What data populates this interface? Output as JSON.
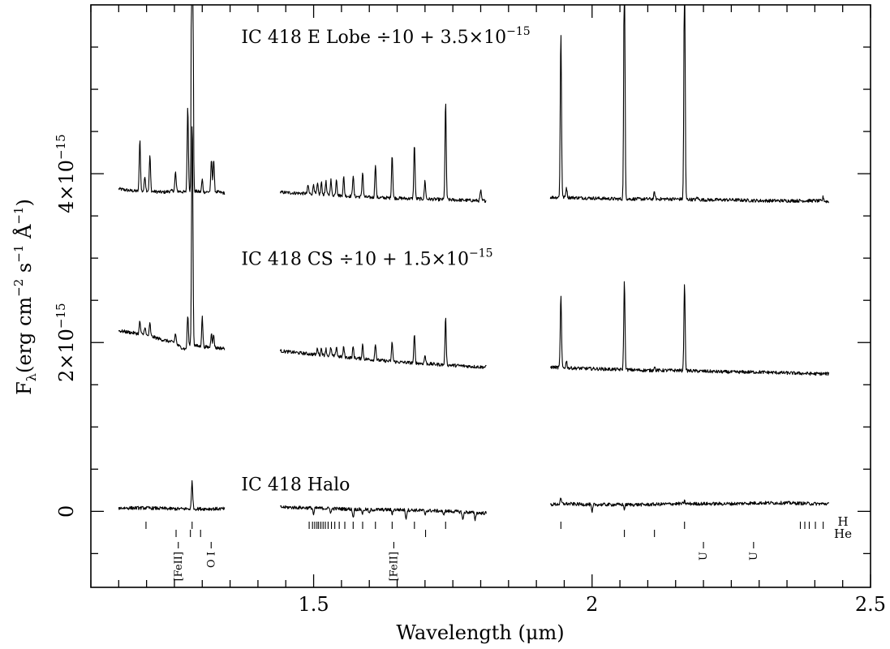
{
  "chart_data": {
    "type": "line",
    "xlabel": "Wavelength (μm)",
    "ylabel_parts": {
      "base": "F",
      "sub": "λ",
      "rest": "(erg cm",
      "exp1": "−2",
      "mid": " s",
      "exp2": "−1",
      "end1": " Å",
      "exp3": "−1",
      "end2": ")"
    },
    "xlim": [
      1.1,
      2.5
    ],
    "ylim": [
      -0.9,
      6.0
    ],
    "x_ticks": [
      {
        "value": 1.5,
        "label": "1.5"
      },
      {
        "value": 2.0,
        "label": "2"
      },
      {
        "value": 2.5,
        "label": "2.5"
      }
    ],
    "y_ticks": [
      {
        "value": 0,
        "mant": "0",
        "exp": ""
      },
      {
        "value": 2,
        "mant": "2×10",
        "exp": "−15"
      },
      {
        "value": 4,
        "mant": "4×10",
        "exp": "−15"
      }
    ],
    "series": [
      {
        "label_main": "IC 418 E Lobe ÷10 + 3.5×10",
        "label_exp": "−15",
        "label_x": 1.37,
        "label_y": 5.55,
        "segments": [
          {
            "x": [
              1.15,
              1.17,
              1.19,
              1.2,
              1.21,
              1.23,
              1.25,
              1.27,
              1.28,
              1.29,
              1.3,
              1.32,
              1.34
            ],
            "y": [
              3.82,
              3.8,
              3.79,
              3.8,
              3.79,
              3.78,
              3.8,
              3.78,
              3.8,
              3.79,
              3.78,
              3.79,
              3.77
            ],
            "peaks": [
              [
                1.188,
                0.62
              ],
              [
                1.197,
                0.18
              ],
              [
                1.206,
                0.42
              ],
              [
                1.252,
                0.22
              ],
              [
                1.274,
                1.0
              ],
              [
                1.2818,
                5.2
              ],
              [
                1.2825,
                3.0
              ],
              [
                1.3,
                0.15
              ],
              [
                1.3165,
                0.38
              ],
              [
                1.3205,
                0.38
              ]
            ]
          },
          {
            "x": [
              1.44,
              1.5,
              1.55,
              1.6,
              1.65,
              1.7,
              1.75,
              1.8,
              1.81
            ],
            "y": [
              3.78,
              3.76,
              3.74,
              3.72,
              3.71,
              3.7,
              3.69,
              3.68,
              3.68
            ],
            "peaks": [
              [
                1.49,
                0.1
              ],
              [
                1.5,
                0.12
              ],
              [
                1.507,
                0.12
              ],
              [
                1.514,
                0.14
              ],
              [
                1.522,
                0.16
              ],
              [
                1.531,
                0.18
              ],
              [
                1.541,
                0.2
              ],
              [
                1.554,
                0.22
              ],
              [
                1.571,
                0.25
              ],
              [
                1.588,
                0.3
              ],
              [
                1.611,
                0.4
              ],
              [
                1.641,
                0.52
              ],
              [
                1.681,
                0.65
              ],
              [
                1.7,
                0.22
              ],
              [
                1.737,
                1.15
              ],
              [
                1.8,
                0.12
              ]
            ]
          },
          {
            "x": [
              1.925,
              1.95,
              2.0,
              2.05,
              2.1,
              2.15,
              2.2,
              2.25,
              2.3,
              2.35,
              2.4,
              2.425
            ],
            "y": [
              3.72,
              3.72,
              3.71,
              3.7,
              3.7,
              3.7,
              3.69,
              3.69,
              3.68,
              3.68,
              3.68,
              3.67
            ],
            "peaks": [
              [
                1.944,
                1.95
              ],
              [
                1.954,
                0.12
              ],
              [
                2.058,
                3.1
              ],
              [
                2.112,
                0.08
              ],
              [
                2.166,
                3.0
              ],
              [
                2.189,
                0.03
              ],
              [
                2.415,
                0.05
              ]
            ]
          }
        ]
      },
      {
        "label_main": "IC 418 CS ÷10 + 1.5×10",
        "label_exp": "−15",
        "label_x": 1.37,
        "label_y": 2.92,
        "segments": [
          {
            "x": [
              1.15,
              1.17,
              1.19,
              1.21,
              1.23,
              1.25,
              1.26,
              1.27,
              1.28,
              1.29,
              1.3,
              1.32,
              1.34
            ],
            "y": [
              2.14,
              2.12,
              2.1,
              2.07,
              2.03,
              2.0,
              1.95,
              1.92,
              1.98,
              1.96,
              1.95,
              1.94,
              1.93
            ],
            "peaks": [
              [
                1.188,
                0.15
              ],
              [
                1.197,
                0.1
              ],
              [
                1.206,
                0.15
              ],
              [
                1.252,
                0.12
              ],
              [
                1.274,
                0.38
              ],
              [
                1.2818,
                1.8
              ],
              [
                1.2825,
                1.0
              ],
              [
                1.3,
                0.35
              ],
              [
                1.3165,
                0.18
              ],
              [
                1.3205,
                0.15
              ]
            ]
          },
          {
            "x": [
              1.44,
              1.5,
              1.55,
              1.6,
              1.65,
              1.7,
              1.75,
              1.8,
              1.81
            ],
            "y": [
              1.9,
              1.86,
              1.83,
              1.8,
              1.77,
              1.75,
              1.73,
              1.71,
              1.71
            ],
            "peaks": [
              [
                1.507,
                0.08
              ],
              [
                1.514,
                0.08
              ],
              [
                1.522,
                0.08
              ],
              [
                1.531,
                0.1
              ],
              [
                1.541,
                0.12
              ],
              [
                1.554,
                0.12
              ],
              [
                1.571,
                0.13
              ],
              [
                1.588,
                0.17
              ],
              [
                1.611,
                0.2
              ],
              [
                1.641,
                0.23
              ],
              [
                1.681,
                0.33
              ],
              [
                1.7,
                0.1
              ],
              [
                1.737,
                0.55
              ]
            ]
          },
          {
            "x": [
              1.925,
              1.95,
              2.0,
              2.05,
              2.1,
              2.15,
              2.2,
              2.25,
              2.3,
              2.35,
              2.4,
              2.425
            ],
            "y": [
              1.71,
              1.7,
              1.69,
              1.68,
              1.67,
              1.67,
              1.66,
              1.65,
              1.65,
              1.64,
              1.63,
              1.63
            ],
            "peaks": [
              [
                1.944,
                0.85
              ],
              [
                1.954,
                0.08
              ],
              [
                2.058,
                1.05
              ],
              [
                2.112,
                0.05
              ],
              [
                2.166,
                1.05
              ]
            ]
          }
        ]
      },
      {
        "label_main": "IC 418 Halo",
        "label_exp": "",
        "label_x": 1.37,
        "label_y": 0.25,
        "segments": [
          {
            "x": [
              1.15,
              1.2,
              1.25,
              1.28,
              1.3,
              1.34
            ],
            "y": [
              0.04,
              0.04,
              0.03,
              0.03,
              0.03,
              0.03
            ],
            "peaks": [
              [
                1.2818,
                0.33
              ]
            ]
          },
          {
            "x": [
              1.44,
              1.5,
              1.55,
              1.6,
              1.65,
              1.7,
              1.75,
              1.8,
              1.81
            ],
            "y": [
              0.05,
              0.04,
              0.03,
              0.02,
              0.02,
              0.01,
              0.0,
              -0.02,
              -0.02
            ],
            "peaks": [
              [
                1.5,
                -0.08
              ],
              [
                1.531,
                -0.05
              ],
              [
                1.571,
                -0.1
              ],
              [
                1.588,
                -0.05
              ],
              [
                1.6,
                -0.05
              ],
              [
                1.641,
                -0.05
              ],
              [
                1.666,
                -0.1
              ],
              [
                1.7,
                -0.05
              ],
              [
                1.733,
                -0.05
              ],
              [
                1.768,
                -0.1
              ],
              [
                1.79,
                -0.08
              ]
            ]
          },
          {
            "x": [
              1.925,
              1.95,
              2.0,
              2.05,
              2.1,
              2.15,
              2.2,
              2.25,
              2.3,
              2.35,
              2.4,
              2.425
            ],
            "y": [
              0.08,
              0.09,
              0.08,
              0.08,
              0.08,
              0.09,
              0.09,
              0.09,
              0.1,
              0.1,
              0.09,
              0.09
            ],
            "peaks": [
              [
                1.944,
                0.06
              ],
              [
                2.0,
                -0.1
              ],
              [
                2.058,
                -0.05
              ],
              [
                2.166,
                0.03
              ]
            ]
          }
        ]
      }
    ],
    "line_markers": {
      "H": [
        1.199,
        1.2818,
        1.492,
        1.498,
        1.502,
        1.506,
        1.509,
        1.513,
        1.517,
        1.521,
        1.526,
        1.532,
        1.538,
        1.546,
        1.556,
        1.571,
        1.588,
        1.611,
        1.641,
        1.681,
        1.737,
        1.944,
        2.166,
        2.374,
        2.382,
        2.39,
        2.401,
        2.415
      ],
      "He": [
        1.253,
        1.2787,
        1.297,
        1.701,
        2.058,
        2.112
      ]
    },
    "line_markers_rows": {
      "top": "H",
      "bottom": "He"
    },
    "species_labels": [
      {
        "text": "[FeII]",
        "x": 1.257
      },
      {
        "text": "O I",
        "x": 1.316
      },
      {
        "text": "[FeII]",
        "x": 1.644
      },
      {
        "text": "U",
        "x": 2.2
      },
      {
        "text": "U",
        "x": 2.29
      }
    ]
  }
}
